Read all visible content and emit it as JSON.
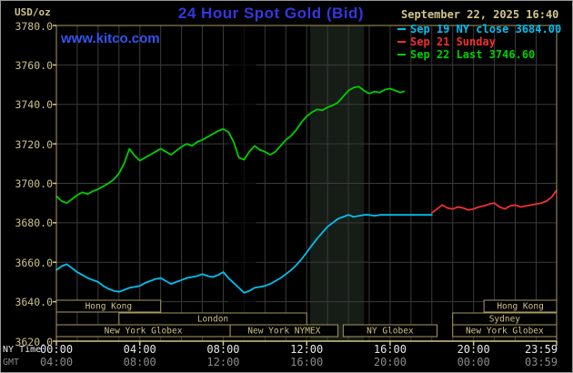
{
  "meta": {
    "datetime_label": "September 22, 2025 16:40"
  },
  "header": {
    "title": "24 Hour Spot Gold (Bid)",
    "watermark": "www.kitco.com"
  },
  "axis_row_labels": {
    "ny": "NY Time",
    "gmt": "GMT"
  },
  "colors": {
    "background": "#000000",
    "plot_bg": "#000000",
    "title": "#3338dd",
    "watermark": "#3355ee",
    "tan_text": "#cdc08c",
    "axis_bright": "#d2c58e",
    "border_tan": "#a89a5e",
    "session_border": "#a89a5e",
    "session_text": "#cfc28a",
    "grid": "#3b3b3b",
    "band_light": "#161c16",
    "band_dark": "rgba(0,0,0,0.65)",
    "xlabel_ny": "#e8e8e8",
    "xlabel_gmt": "#8a8a8a"
  },
  "chart_data": {
    "type": "line",
    "title": "24 Hour Spot Gold (Bid)",
    "ylabel": "USD/oz",
    "ylim": [
      3620,
      3780
    ],
    "ytick_step": 20,
    "ytick_labels": [
      "3780.0",
      "3760.0",
      "3740.0",
      "3720.0",
      "3700.0",
      "3680.0",
      "3660.0",
      "3640.0",
      "3620.0"
    ],
    "xlim_minutes": [
      0,
      1439
    ],
    "grid": true,
    "grid_vertical_every_minutes": 60,
    "legend_position": "top-right",
    "xticks": [
      {
        "min": 0,
        "ny": "00:00",
        "gmt": "04:00"
      },
      {
        "min": 240,
        "ny": "04:00",
        "gmt": "08:00"
      },
      {
        "min": 480,
        "ny": "08:00",
        "gmt": "12:00"
      },
      {
        "min": 720,
        "ny": "12:00",
        "gmt": "16:00"
      },
      {
        "min": 960,
        "ny": "16:00",
        "gmt": "20:00"
      },
      {
        "min": 1200,
        "ny": "20:00",
        "gmt": "00:00"
      },
      {
        "min": 1439,
        "ny": "23:59",
        "gmt": "03:59"
      }
    ],
    "bands": [
      {
        "type": "dark",
        "from_min": 495,
        "to_min": 575
      },
      {
        "type": "light",
        "from_min": 730,
        "to_min": 885
      }
    ],
    "sessions": [
      {
        "label": "Hong Kong",
        "row": 0,
        "from_min": 0,
        "to_min": 300
      },
      {
        "label": "Hong Kong",
        "row": 0,
        "from_min": 1230,
        "to_min": 1439
      },
      {
        "label": "London",
        "row": 1,
        "from_min": 180,
        "to_min": 720
      },
      {
        "label": "Sydney",
        "row": 1,
        "from_min": 1140,
        "to_min": 1439
      },
      {
        "label": "New York Globex",
        "row": 2,
        "from_min": 0,
        "to_min": 500
      },
      {
        "label": "New York NYMEX",
        "row": 2,
        "from_min": 500,
        "to_min": 810
      },
      {
        "label": "NY Globex",
        "row": 2,
        "from_min": 825,
        "to_min": 1095
      },
      {
        "label": "New York Globex",
        "row": 2,
        "from_min": 1140,
        "to_min": 1439
      }
    ],
    "series": [
      {
        "name": "Sep 19 NY close 3684.00",
        "color": "#00c0f0",
        "points": [
          [
            0,
            3656
          ],
          [
            15,
            3658
          ],
          [
            30,
            3659
          ],
          [
            45,
            3657
          ],
          [
            60,
            3655
          ],
          [
            75,
            3653.5
          ],
          [
            90,
            3652
          ],
          [
            105,
            3651
          ],
          [
            120,
            3650
          ],
          [
            135,
            3648
          ],
          [
            150,
            3646.5
          ],
          [
            165,
            3645.5
          ],
          [
            180,
            3645
          ],
          [
            195,
            3646
          ],
          [
            210,
            3647
          ],
          [
            225,
            3647.5
          ],
          [
            240,
            3648
          ],
          [
            255,
            3649.5
          ],
          [
            270,
            3650.5
          ],
          [
            285,
            3651.5
          ],
          [
            300,
            3652
          ],
          [
            315,
            3650.5
          ],
          [
            330,
            3649
          ],
          [
            345,
            3650
          ],
          [
            360,
            3651
          ],
          [
            375,
            3652
          ],
          [
            390,
            3652.5
          ],
          [
            405,
            3653
          ],
          [
            420,
            3654
          ],
          [
            435,
            3653
          ],
          [
            450,
            3652.5
          ],
          [
            465,
            3653.5
          ],
          [
            480,
            3655
          ],
          [
            495,
            3652
          ],
          [
            510,
            3649.5
          ],
          [
            525,
            3647
          ],
          [
            540,
            3644.5
          ],
          [
            555,
            3645.5
          ],
          [
            570,
            3647
          ],
          [
            585,
            3647.5
          ],
          [
            600,
            3648
          ],
          [
            615,
            3649
          ],
          [
            630,
            3650.5
          ],
          [
            645,
            3652
          ],
          [
            660,
            3654
          ],
          [
            675,
            3656
          ],
          [
            690,
            3658.5
          ],
          [
            705,
            3661.5
          ],
          [
            720,
            3665
          ],
          [
            735,
            3668.5
          ],
          [
            750,
            3672
          ],
          [
            765,
            3675
          ],
          [
            780,
            3678
          ],
          [
            795,
            3680
          ],
          [
            810,
            3682
          ],
          [
            825,
            3683
          ],
          [
            840,
            3684
          ],
          [
            855,
            3683
          ],
          [
            870,
            3683.5
          ],
          [
            885,
            3684
          ],
          [
            900,
            3684
          ],
          [
            915,
            3683.5
          ],
          [
            930,
            3684
          ],
          [
            945,
            3684
          ],
          [
            960,
            3684
          ],
          [
            975,
            3684
          ],
          [
            990,
            3684
          ],
          [
            1005,
            3684
          ],
          [
            1020,
            3684
          ],
          [
            1035,
            3684
          ],
          [
            1050,
            3684
          ],
          [
            1065,
            3684
          ],
          [
            1080,
            3684
          ]
        ]
      },
      {
        "name": "Sep 21 Sunday",
        "color": "#f23030",
        "points": [
          [
            1080,
            3685
          ],
          [
            1095,
            3687
          ],
          [
            1110,
            3689
          ],
          [
            1125,
            3687.5
          ],
          [
            1140,
            3687
          ],
          [
            1155,
            3688
          ],
          [
            1170,
            3687.5
          ],
          [
            1185,
            3686.5
          ],
          [
            1200,
            3687
          ],
          [
            1215,
            3688
          ],
          [
            1230,
            3688.5
          ],
          [
            1245,
            3689.5
          ],
          [
            1260,
            3690
          ],
          [
            1275,
            3688
          ],
          [
            1290,
            3687
          ],
          [
            1305,
            3688.5
          ],
          [
            1320,
            3689
          ],
          [
            1335,
            3688
          ],
          [
            1350,
            3688.5
          ],
          [
            1365,
            3689
          ],
          [
            1380,
            3689.5
          ],
          [
            1395,
            3690
          ],
          [
            1410,
            3691
          ],
          [
            1425,
            3693
          ],
          [
            1439,
            3696.5
          ]
        ]
      },
      {
        "name": "Sep 22 Last 3746.60",
        "color": "#00d000",
        "points": [
          [
            0,
            3693.5
          ],
          [
            15,
            3691
          ],
          [
            30,
            3690
          ],
          [
            45,
            3692
          ],
          [
            60,
            3694
          ],
          [
            75,
            3695.5
          ],
          [
            90,
            3694.5
          ],
          [
            105,
            3696
          ],
          [
            120,
            3697
          ],
          [
            135,
            3698.5
          ],
          [
            150,
            3700
          ],
          [
            165,
            3702
          ],
          [
            180,
            3705
          ],
          [
            195,
            3710
          ],
          [
            210,
            3717.5
          ],
          [
            225,
            3714
          ],
          [
            240,
            3711.5
          ],
          [
            255,
            3713
          ],
          [
            270,
            3714.5
          ],
          [
            285,
            3716
          ],
          [
            300,
            3717.5
          ],
          [
            315,
            3716
          ],
          [
            330,
            3714.5
          ],
          [
            345,
            3716.5
          ],
          [
            360,
            3718.5
          ],
          [
            375,
            3720
          ],
          [
            390,
            3719
          ],
          [
            405,
            3721
          ],
          [
            420,
            3722
          ],
          [
            435,
            3723.5
          ],
          [
            450,
            3725
          ],
          [
            465,
            3726.5
          ],
          [
            480,
            3727.5
          ],
          [
            495,
            3726
          ],
          [
            510,
            3721
          ],
          [
            525,
            3713
          ],
          [
            540,
            3712
          ],
          [
            555,
            3716
          ],
          [
            570,
            3719
          ],
          [
            585,
            3717
          ],
          [
            600,
            3716
          ],
          [
            615,
            3714.5
          ],
          [
            630,
            3716
          ],
          [
            645,
            3719
          ],
          [
            660,
            3722
          ],
          [
            675,
            3724
          ],
          [
            690,
            3727
          ],
          [
            705,
            3731
          ],
          [
            720,
            3734
          ],
          [
            735,
            3736
          ],
          [
            750,
            3737.5
          ],
          [
            765,
            3737
          ],
          [
            780,
            3738.5
          ],
          [
            795,
            3739.5
          ],
          [
            810,
            3741
          ],
          [
            825,
            3744
          ],
          [
            840,
            3747
          ],
          [
            855,
            3748.5
          ],
          [
            870,
            3749
          ],
          [
            885,
            3747
          ],
          [
            900,
            3745.5
          ],
          [
            915,
            3746.5
          ],
          [
            930,
            3746
          ],
          [
            945,
            3747.5
          ],
          [
            960,
            3748
          ],
          [
            975,
            3747
          ],
          [
            990,
            3746
          ],
          [
            1000,
            3746.6
          ]
        ]
      }
    ]
  }
}
